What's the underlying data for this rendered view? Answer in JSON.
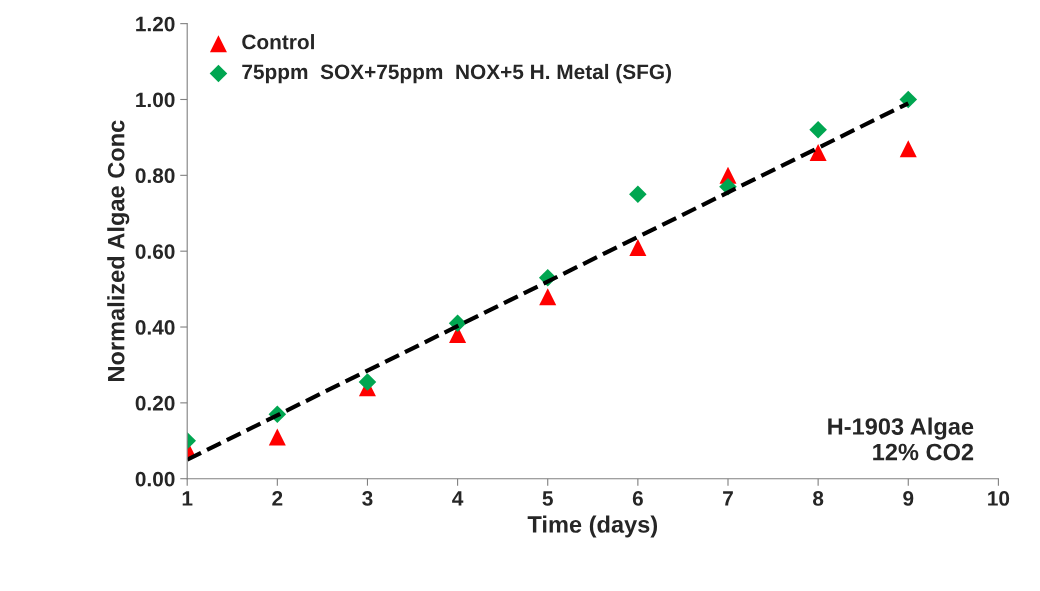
{
  "chart_data": {
    "type": "scatter",
    "xlabel": "Time (days)",
    "ylabel": "Normalized Algae Conc",
    "x": [
      1,
      2,
      3,
      4,
      5,
      6,
      7,
      8,
      9
    ],
    "series": [
      {
        "name": "Control",
        "color": "#ff0000",
        "marker": "triangle",
        "values": [
          0.08,
          0.11,
          0.24,
          0.38,
          0.48,
          0.61,
          0.8,
          0.86,
          0.87
        ]
      },
      {
        "name": "75ppm  SOX+75ppm  NOX+5 H. Metal (SFG)",
        "color": "#00a651",
        "marker": "diamond",
        "values": [
          0.1,
          0.17,
          0.255,
          0.41,
          0.53,
          0.75,
          0.77,
          0.92,
          1.0
        ]
      },
      {
        "type": "line",
        "color": "#000000",
        "line_style": "dashed",
        "marker": "none",
        "x": [
          1,
          9
        ],
        "values": [
          0.05,
          0.99
        ]
      }
    ],
    "xlim": [
      1,
      10
    ],
    "xticks": [
      1,
      2,
      3,
      4,
      5,
      6,
      7,
      8,
      9,
      10
    ],
    "ylim": [
      0,
      1.2
    ],
    "yticks": [
      {
        "value": 0,
        "label": "0.00"
      },
      {
        "value": 0.2,
        "label": "0.20"
      },
      {
        "value": 0.4,
        "label": "0.40"
      },
      {
        "value": 0.6,
        "label": "0.60"
      },
      {
        "value": 0.8,
        "label": "0.80"
      },
      {
        "value": 1.0,
        "label": "1.00"
      },
      {
        "value": 1.2,
        "label": "1.20"
      }
    ],
    "annotations": [
      "H-1903 Algae\n12% CO2"
    ],
    "legend": "top left",
    "grid": false
  }
}
